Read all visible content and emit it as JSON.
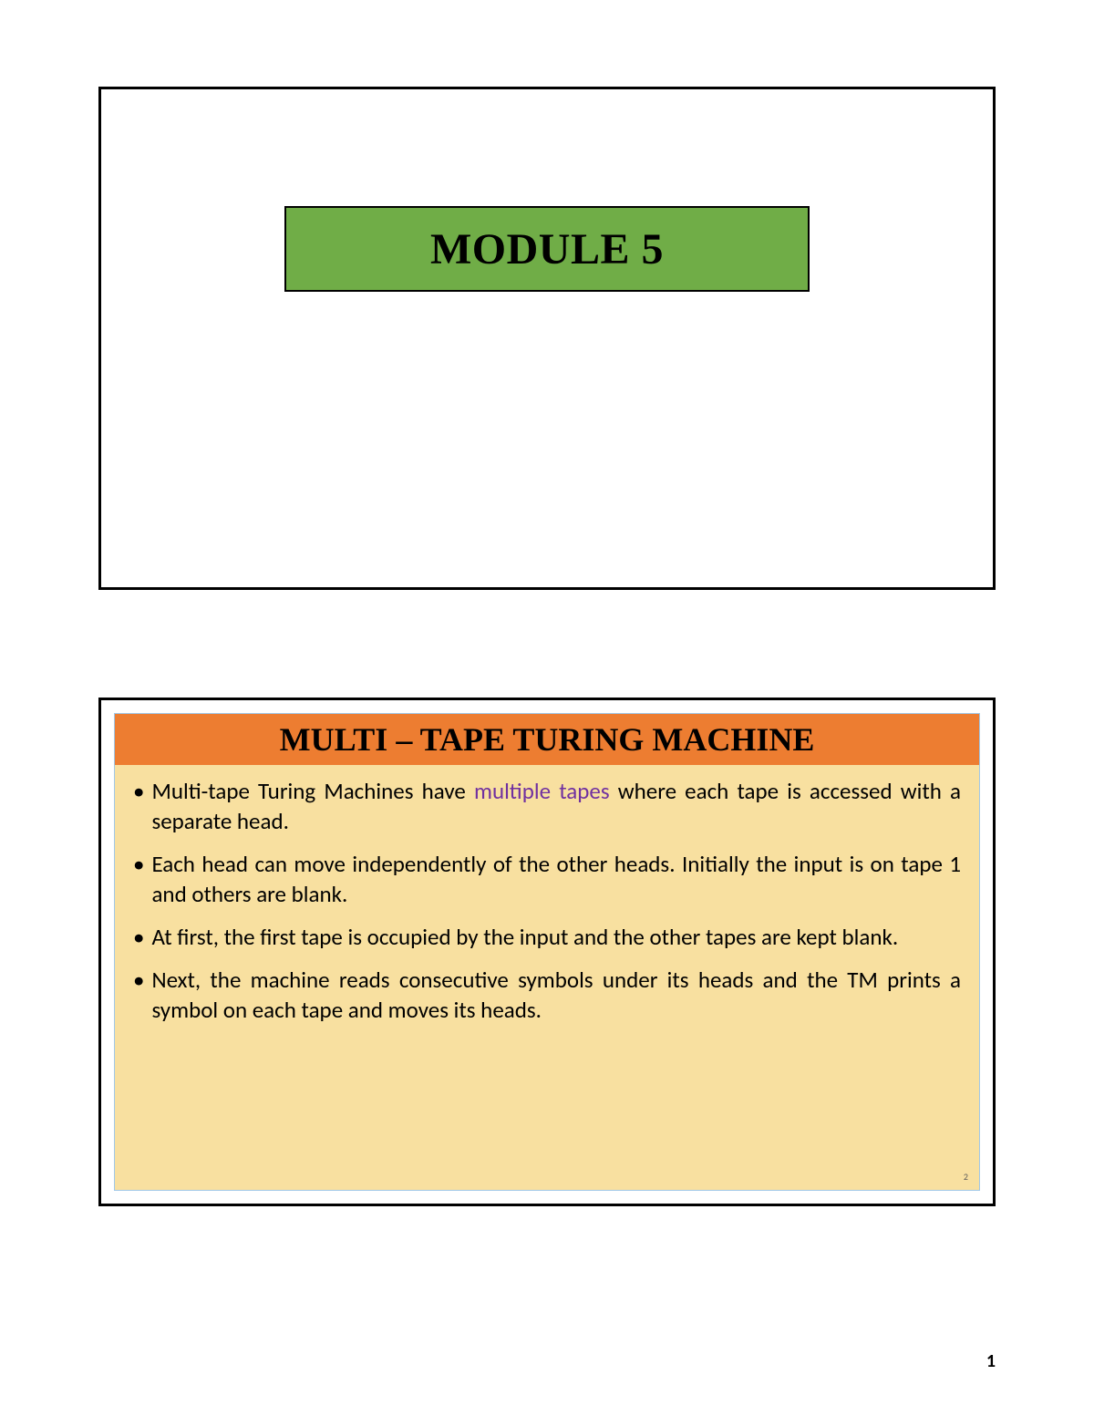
{
  "page": {
    "page_number": "1",
    "background": "#ffffff"
  },
  "slide1": {
    "title": "MODULE 5",
    "title_box_bg": "#70ad47",
    "title_box_border": "#000000",
    "title_color": "#000000",
    "title_fontsize": 48
  },
  "slide2": {
    "header": "MULTI – TAPE TURING MACHINE",
    "header_bg": "#ed7d31",
    "header_color": "#000000",
    "header_fontsize": 36,
    "panel_bg": "#f8e0a0",
    "panel_border": "#a1c8e8",
    "highlight_phrase": "multiple tapes",
    "highlight_color": "#7030a0",
    "bullet1_pre": "Multi-tape Turing Machines have ",
    "bullet1_post": " where each tape is accessed with a separate head.",
    "bullet2": "Each head can move independently of the other heads. Initially the input is on tape 1 and others are blank.",
    "bullet3": " At first, the first tape is occupied by the input and the other tapes are kept blank.",
    "bullet4": "Next, the machine reads consecutive symbols under its heads and the TM prints a symbol on each tape and moves its heads.",
    "slide_number": "2",
    "bullet_fontsize": 25,
    "text_color": "#000000"
  },
  "frame": {
    "border_color": "#000000",
    "border_width": 3
  }
}
